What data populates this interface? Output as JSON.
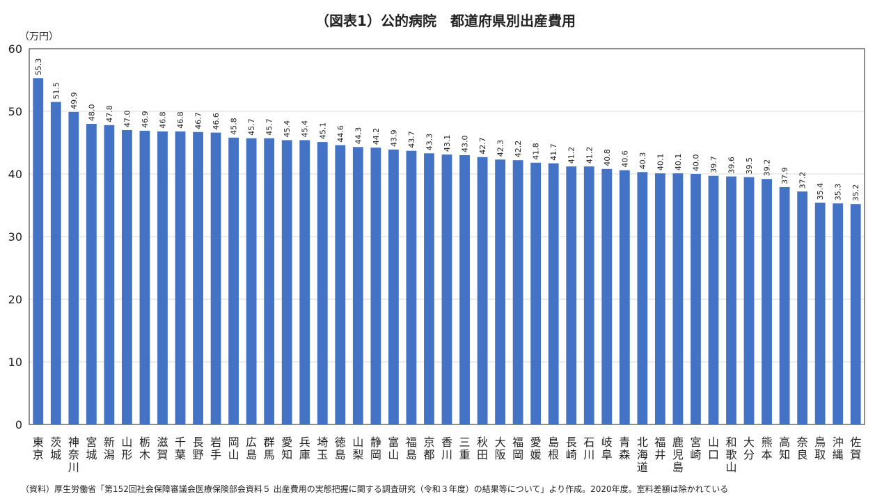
{
  "chart_data": {
    "type": "bar",
    "title": "（図表1）公的病院　都道府県別出産費用",
    "ylabel": "（万円）",
    "xlabel": "",
    "ylim": [
      0,
      60
    ],
    "yticks": [
      0,
      10,
      20,
      30,
      40,
      50,
      60
    ],
    "grid": true,
    "bar_color": "#4472c4",
    "categories": [
      "東京",
      "茨城",
      "神奈川",
      "宮城",
      "新潟",
      "山形",
      "栃木",
      "滋賀",
      "千葉",
      "長野",
      "岩手",
      "岡山",
      "広島",
      "群馬",
      "愛知",
      "兵庫",
      "埼玉",
      "徳島",
      "山梨",
      "静岡",
      "富山",
      "福島",
      "京都",
      "香川",
      "三重",
      "秋田",
      "大阪",
      "福岡",
      "愛媛",
      "島根",
      "長崎",
      "石川",
      "岐阜",
      "青森",
      "北海道",
      "福井",
      "鹿児島",
      "宮崎",
      "山口",
      "和歌山",
      "大分",
      "熊本",
      "高知",
      "奈良",
      "鳥取",
      "沖縄",
      "佐賀"
    ],
    "values": [
      55.3,
      51.5,
      49.9,
      48.0,
      47.8,
      47.0,
      46.9,
      46.8,
      46.8,
      46.7,
      46.6,
      45.8,
      45.7,
      45.7,
      45.4,
      45.4,
      45.1,
      44.6,
      44.3,
      44.2,
      43.9,
      43.7,
      43.3,
      43.1,
      43.0,
      42.7,
      42.3,
      42.2,
      41.8,
      41.7,
      41.2,
      41.2,
      40.8,
      40.6,
      40.3,
      40.1,
      40.1,
      40.0,
      39.7,
      39.6,
      39.5,
      39.2,
      37.9,
      37.2,
      35.4,
      35.3,
      35.2
    ],
    "value_labels": [
      "55.3",
      "51.5",
      "49.9",
      "48.0",
      "47.8",
      "47.0",
      "46.9",
      "46.8",
      "46.8",
      "46.7",
      "46.6",
      "45.8",
      "45.7",
      "45.7",
      "45.4",
      "45.4",
      "45.1",
      "44.6",
      "44.3",
      "44.2",
      "43.9",
      "43.7",
      "43.3",
      "43.1",
      "43.0",
      "42.7",
      "42.3",
      "42.2",
      "41.8",
      "41.7",
      "41.2",
      "41.2",
      "40.8",
      "40.6",
      "40.3",
      "40.1",
      "40.1",
      "40.0",
      "39.7",
      "39.6",
      "39.5",
      "39.2",
      "37.9",
      "37.2",
      "35.4",
      "35.3",
      "35.2"
    ],
    "source": "（資料）厚生労働省「第152回社会保障審議会医療保険部会資料５ 出産費用の実態把握に関する調査研究（令和３年度）の結果等について」より作成。2020年度。室料差額は除かれている"
  }
}
